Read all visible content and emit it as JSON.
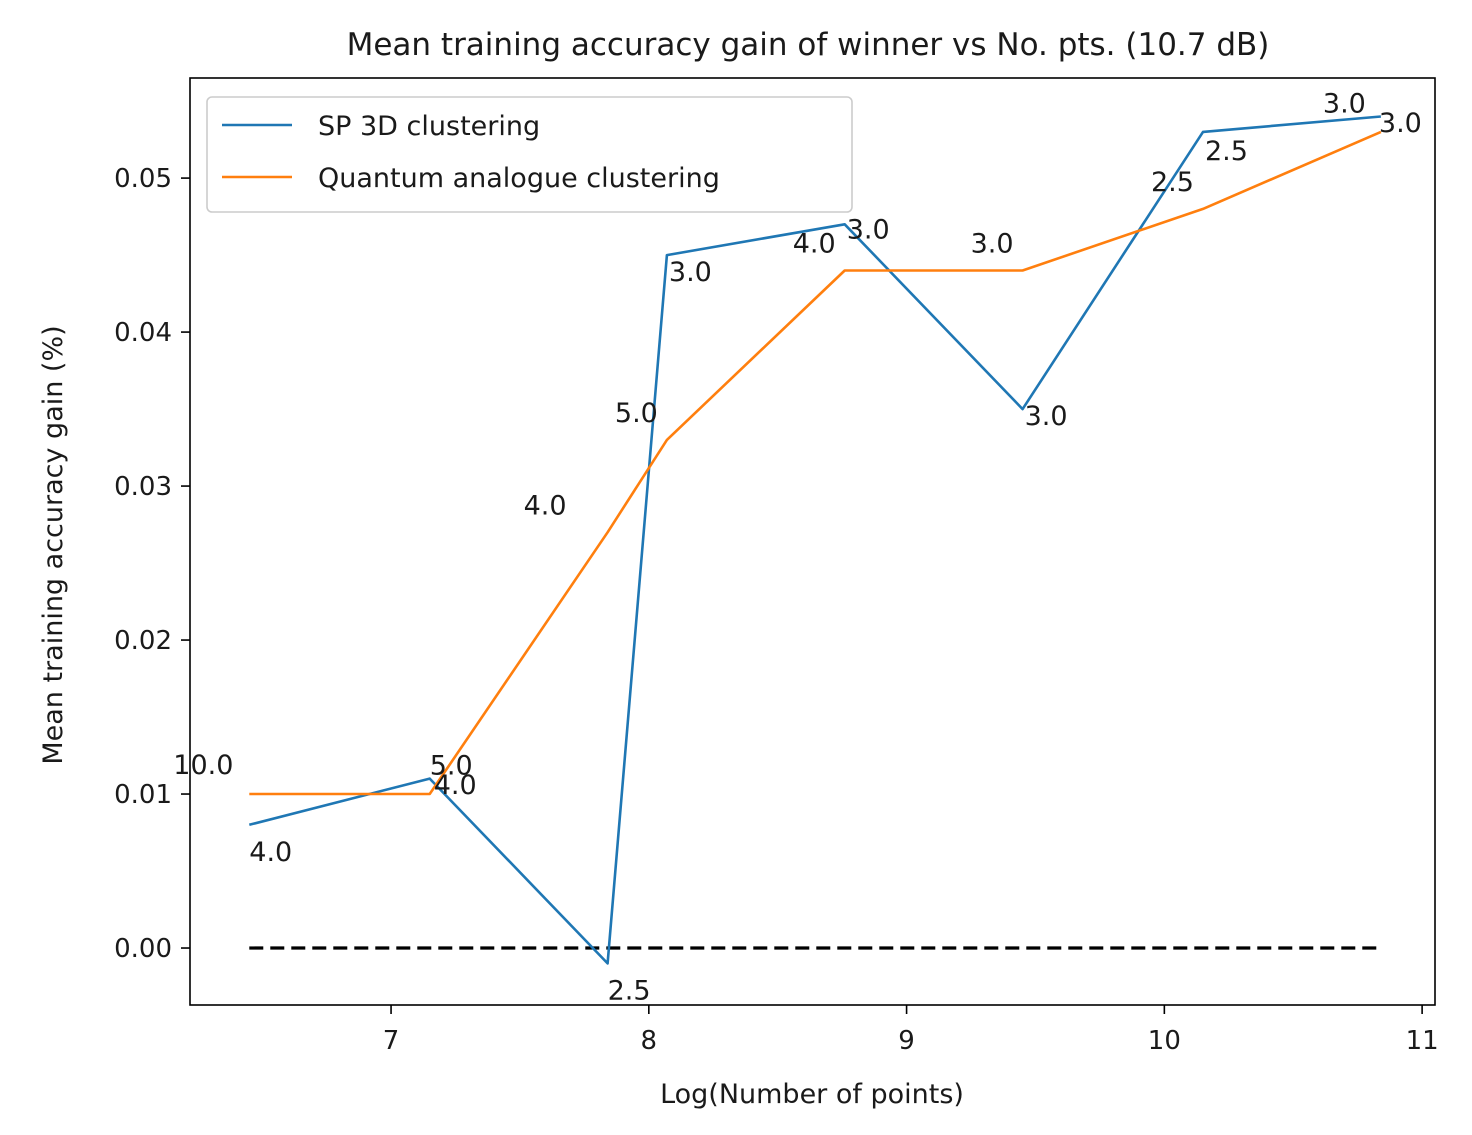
{
  "chart_data": {
    "type": "line",
    "title": "Mean training accuracy gain of winner vs No. pts. (10.7 dB)",
    "xlabel": "Log(Number of points)",
    "ylabel": "Mean training accuracy gain (%)",
    "xlim": [
      6.22,
      11.05
    ],
    "ylim": [
      -0.0037,
      0.0565
    ],
    "x_ticks": [
      7,
      8,
      9,
      10,
      11
    ],
    "y_ticks": [
      0.0,
      0.01,
      0.02,
      0.03,
      0.04,
      0.05
    ],
    "y_tick_labels": [
      "0.00",
      "0.01",
      "0.02",
      "0.03",
      "0.04",
      "0.05"
    ],
    "x_tick_labels": [
      "7",
      "8",
      "9",
      "10",
      "11"
    ],
    "grid": false,
    "legend_position": "top-left",
    "series": [
      {
        "name": "SP 3D clustering",
        "color": "#1f77b4",
        "x": [
          6.45,
          7.15,
          7.84,
          8.07,
          8.76,
          9.45,
          10.15,
          10.84
        ],
        "y": [
          0.008,
          0.011,
          -0.001,
          0.045,
          0.047,
          0.035,
          0.053,
          0.054
        ],
        "point_labels": [
          "4.0",
          "5.0",
          "2.5",
          "3.0",
          "3.0",
          "3.0",
          "2.5",
          "3.0"
        ]
      },
      {
        "name": "Quantum analogue clustering",
        "color": "#ff7f0e",
        "x": [
          6.45,
          7.15,
          7.84,
          8.07,
          8.76,
          9.45,
          10.15,
          10.84
        ],
        "y": [
          0.01,
          0.01,
          0.027,
          0.033,
          0.044,
          0.044,
          0.048,
          0.053
        ],
        "point_labels": [
          "10.0",
          "4.0",
          "4.0",
          "5.0",
          "4.0",
          "3.0",
          "2.5",
          "3.0"
        ]
      }
    ],
    "reference_line": {
      "y": 0.0,
      "x": [
        6.45,
        10.84
      ],
      "style": "dashed",
      "color": "#000000"
    }
  }
}
